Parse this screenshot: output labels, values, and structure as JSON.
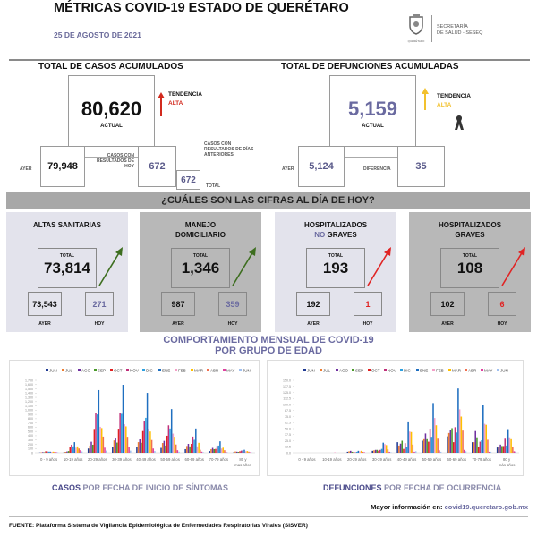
{
  "header": {
    "title": "MÉTRICAS COVID-19 ESTADO DE QUERÉTARO",
    "date": "25 DE AGOSTO DE 2021",
    "logo_text": "QUERÉTARO",
    "agency_line1": "SECRETARÍA",
    "agency_line2": "DE SALUD - SESEQ"
  },
  "cases": {
    "title": "TOTAL DE CASOS ACUMULADOS",
    "actual": "80,620",
    "actual_label": "ACTUAL",
    "trend_label": "TENDENCIA",
    "trend_value": "ALTA",
    "trend_color": "#d22a1e",
    "ayer_label": "AYER",
    "ayer": "79,948",
    "today_label": "CASOS CON RESULTADOS DE HOY",
    "today": "672",
    "previous_label": "CASOS CON RESULTADOS DE DÍAS ANTERIORES",
    "total": "672",
    "total_label": "TOTAL"
  },
  "deaths": {
    "title": "TOTAL DE DEFUNCIONES ACUMULADAS",
    "actual": "5,159",
    "actual_label": "ACTUAL",
    "trend_label": "TENDENCIA",
    "trend_value": "ALTA",
    "trend_color": "#f2c12e",
    "ayer_label": "AYER",
    "ayer": "5,124",
    "diff_label": "DIFERENCIA",
    "diff": "35"
  },
  "banner": "¿CUÁLES SON LAS CIFRAS AL DÍA DE HOY?",
  "cards": [
    {
      "title1": "ALTAS SANITARIAS",
      "title2": "",
      "total_label": "TOTAL",
      "total": "73,814",
      "ayer": "73,543",
      "hoy": "271",
      "ayer_label": "AYER",
      "hoy_label": "HOY",
      "arrow_color": "#3d6e1f",
      "hoy_color": "#6a6aa0"
    },
    {
      "title1": "MANEJO",
      "title2": "DOMICILIARIO",
      "total_label": "TOTAL",
      "total": "1,346",
      "ayer": "987",
      "hoy": "359",
      "ayer_label": "AYER",
      "hoy_label": "HOY",
      "arrow_color": "#3d6e1f",
      "hoy_color": "#6a6aa0"
    },
    {
      "title1": "HOSPITALIZADOS",
      "title2a": "NO",
      "title2b": " GRAVES",
      "total_label": "TOTAL",
      "total": "193",
      "ayer": "192",
      "hoy": "1",
      "ayer_label": "AYER",
      "hoy_label": "HOY",
      "arrow_color": "#e02424",
      "hoy_color": "#e02424"
    },
    {
      "title1": "HOSPITALIZADOS",
      "title2": "GRAVES",
      "total_label": "TOTAL",
      "total": "108",
      "ayer": "102",
      "hoy": "6",
      "ayer_label": "AYER",
      "hoy_label": "HOY",
      "arrow_color": "#e02424",
      "hoy_color": "#e02424"
    }
  ],
  "section_title1": "COMPORTAMIENTO MENSUAL DE COVID-19",
  "section_title2": "POR GRUPO DE EDAD",
  "chart_data": [
    {
      "type": "bar",
      "categories": [
        "0 - 9 años",
        "10-19 años",
        "20-29 años",
        "30-39 años",
        "40-49 años",
        "50-59 años",
        "60-69 años",
        "70-79 años",
        "80 y mas años"
      ],
      "ylim": [
        0,
        1700
      ],
      "ytick_step": 100,
      "grid": false,
      "legend": "top",
      "caption_a": "CASOS",
      "caption_b": " POR FECHA DE INICIO DE SÍNTOMAS",
      "series": [
        {
          "name": "JUN",
          "color": "#1f3a93",
          "values": [
            5,
            15,
            100,
            130,
            145,
            115,
            85,
            40,
            15
          ]
        },
        {
          "name": "JUL",
          "color": "#ed7d31",
          "values": [
            10,
            20,
            170,
            290,
            250,
            230,
            160,
            85,
            30
          ]
        },
        {
          "name": "AGO",
          "color": "#7030a0",
          "values": [
            15,
            30,
            260,
            355,
            315,
            280,
            210,
            115,
            25
          ]
        },
        {
          "name": "SEP",
          "color": "#4a9a2a",
          "values": [
            10,
            40,
            190,
            240,
            235,
            170,
            150,
            85,
            20
          ]
        },
        {
          "name": "OCT",
          "color": "#e02020",
          "values": [
            35,
            130,
            560,
            565,
            510,
            400,
            210,
            90,
            35
          ]
        },
        {
          "name": "NOV",
          "color": "#c0307a",
          "values": [
            30,
            190,
            940,
            925,
            755,
            645,
            380,
            160,
            50
          ]
        },
        {
          "name": "DIC",
          "color": "#2ca0e0",
          "values": [
            25,
            150,
            900,
            915,
            820,
            570,
            305,
            170,
            55
          ]
        },
        {
          "name": "ENE",
          "color": "#1f6fc0",
          "values": [
            25,
            250,
            1470,
            1595,
            1405,
            1025,
            570,
            270,
            70
          ]
        },
        {
          "name": "FEB",
          "color": "#f4a0c8",
          "values": [
            20,
            120,
            610,
            670,
            565,
            450,
            150,
            100,
            35
          ]
        },
        {
          "name": "MAR",
          "color": "#ffc000",
          "values": [
            25,
            150,
            580,
            620,
            500,
            375,
            235,
            120,
            40
          ]
        },
        {
          "name": "ABR",
          "color": "#f07050",
          "values": [
            20,
            100,
            380,
            375,
            300,
            195,
            70,
            60,
            25
          ]
        },
        {
          "name": "MAY",
          "color": "#e040a0",
          "values": [
            15,
            60,
            120,
            140,
            100,
            60,
            25,
            20,
            10
          ]
        },
        {
          "name": "JUN",
          "color": "#a0c0f0",
          "values": [
            10,
            30,
            50,
            50,
            40,
            25,
            12,
            8,
            5
          ]
        }
      ]
    },
    {
      "type": "bar",
      "categories": [
        "0 - 9 años",
        "10-19 años",
        "20-29 años",
        "30-39 años",
        "40-49 años",
        "50-59 años",
        "60-69 años",
        "70-79 años",
        "80 y más años"
      ],
      "ylim": [
        0,
        150
      ],
      "ytick_step": 12.5,
      "grid": false,
      "legend": "top",
      "caption_a": "DEFUNCIONES",
      "caption_b": " POR FECHA DE OCURRENCIA",
      "series": [
        {
          "name": "JUN",
          "color": "#1f3a93",
          "values": [
            0,
            0,
            2,
            4,
            22,
            25,
            34,
            22,
            11
          ]
        },
        {
          "name": "JUL",
          "color": "#ed7d31",
          "values": [
            0,
            0,
            3,
            5,
            15,
            30,
            41,
            22,
            13
          ]
        },
        {
          "name": "AGO",
          "color": "#7030a0",
          "values": [
            0,
            0,
            4,
            6,
            19,
            40,
            48,
            45,
            17
          ]
        },
        {
          "name": "SEP",
          "color": "#4a9a2a",
          "values": [
            0,
            0,
            2,
            6,
            25,
            30,
            51,
            32,
            14
          ]
        },
        {
          "name": "OCT",
          "color": "#e02020",
          "values": [
            0,
            0,
            1,
            4,
            8,
            23,
            22,
            13,
            14
          ]
        },
        {
          "name": "NOV",
          "color": "#c0307a",
          "values": [
            0,
            0,
            1,
            6,
            20,
            50,
            53,
            23,
            31
          ]
        },
        {
          "name": "DIC",
          "color": "#2ca0e0",
          "values": [
            0,
            0,
            2,
            8,
            12,
            33,
            42,
            26,
            15
          ]
        },
        {
          "name": "ENE",
          "color": "#1f6fc0",
          "values": [
            0,
            0,
            4,
            21,
            65,
            103,
            133,
            99,
            49
          ]
        },
        {
          "name": "FEB",
          "color": "#f4a0c8",
          "values": [
            0,
            1,
            3,
            18,
            44,
            72,
            90,
            60,
            32
          ]
        },
        {
          "name": "MAR",
          "color": "#ffc000",
          "values": [
            0,
            0,
            4,
            16,
            43,
            57,
            75,
            58,
            30
          ]
        },
        {
          "name": "ABR",
          "color": "#f07050",
          "values": [
            0,
            0,
            2,
            7,
            17,
            31,
            46,
            27,
            13
          ]
        },
        {
          "name": "MAY",
          "color": "#e040a0",
          "values": [
            0,
            0,
            1,
            2,
            2,
            5,
            6,
            2,
            3
          ]
        },
        {
          "name": "JUN",
          "color": "#a0c0f0",
          "values": [
            0,
            0,
            0,
            1,
            3,
            2,
            3,
            2,
            2
          ]
        }
      ]
    }
  ],
  "footer": {
    "info_label": "Mayor información en:",
    "info_link": "covid19.queretaro.gob.mx",
    "source_label": "FUENTE:",
    "source": " Plataforma Sistema  de Vigilancia Epidemiológica de Enfermedades Respiratorias Virales (SISVER)"
  }
}
